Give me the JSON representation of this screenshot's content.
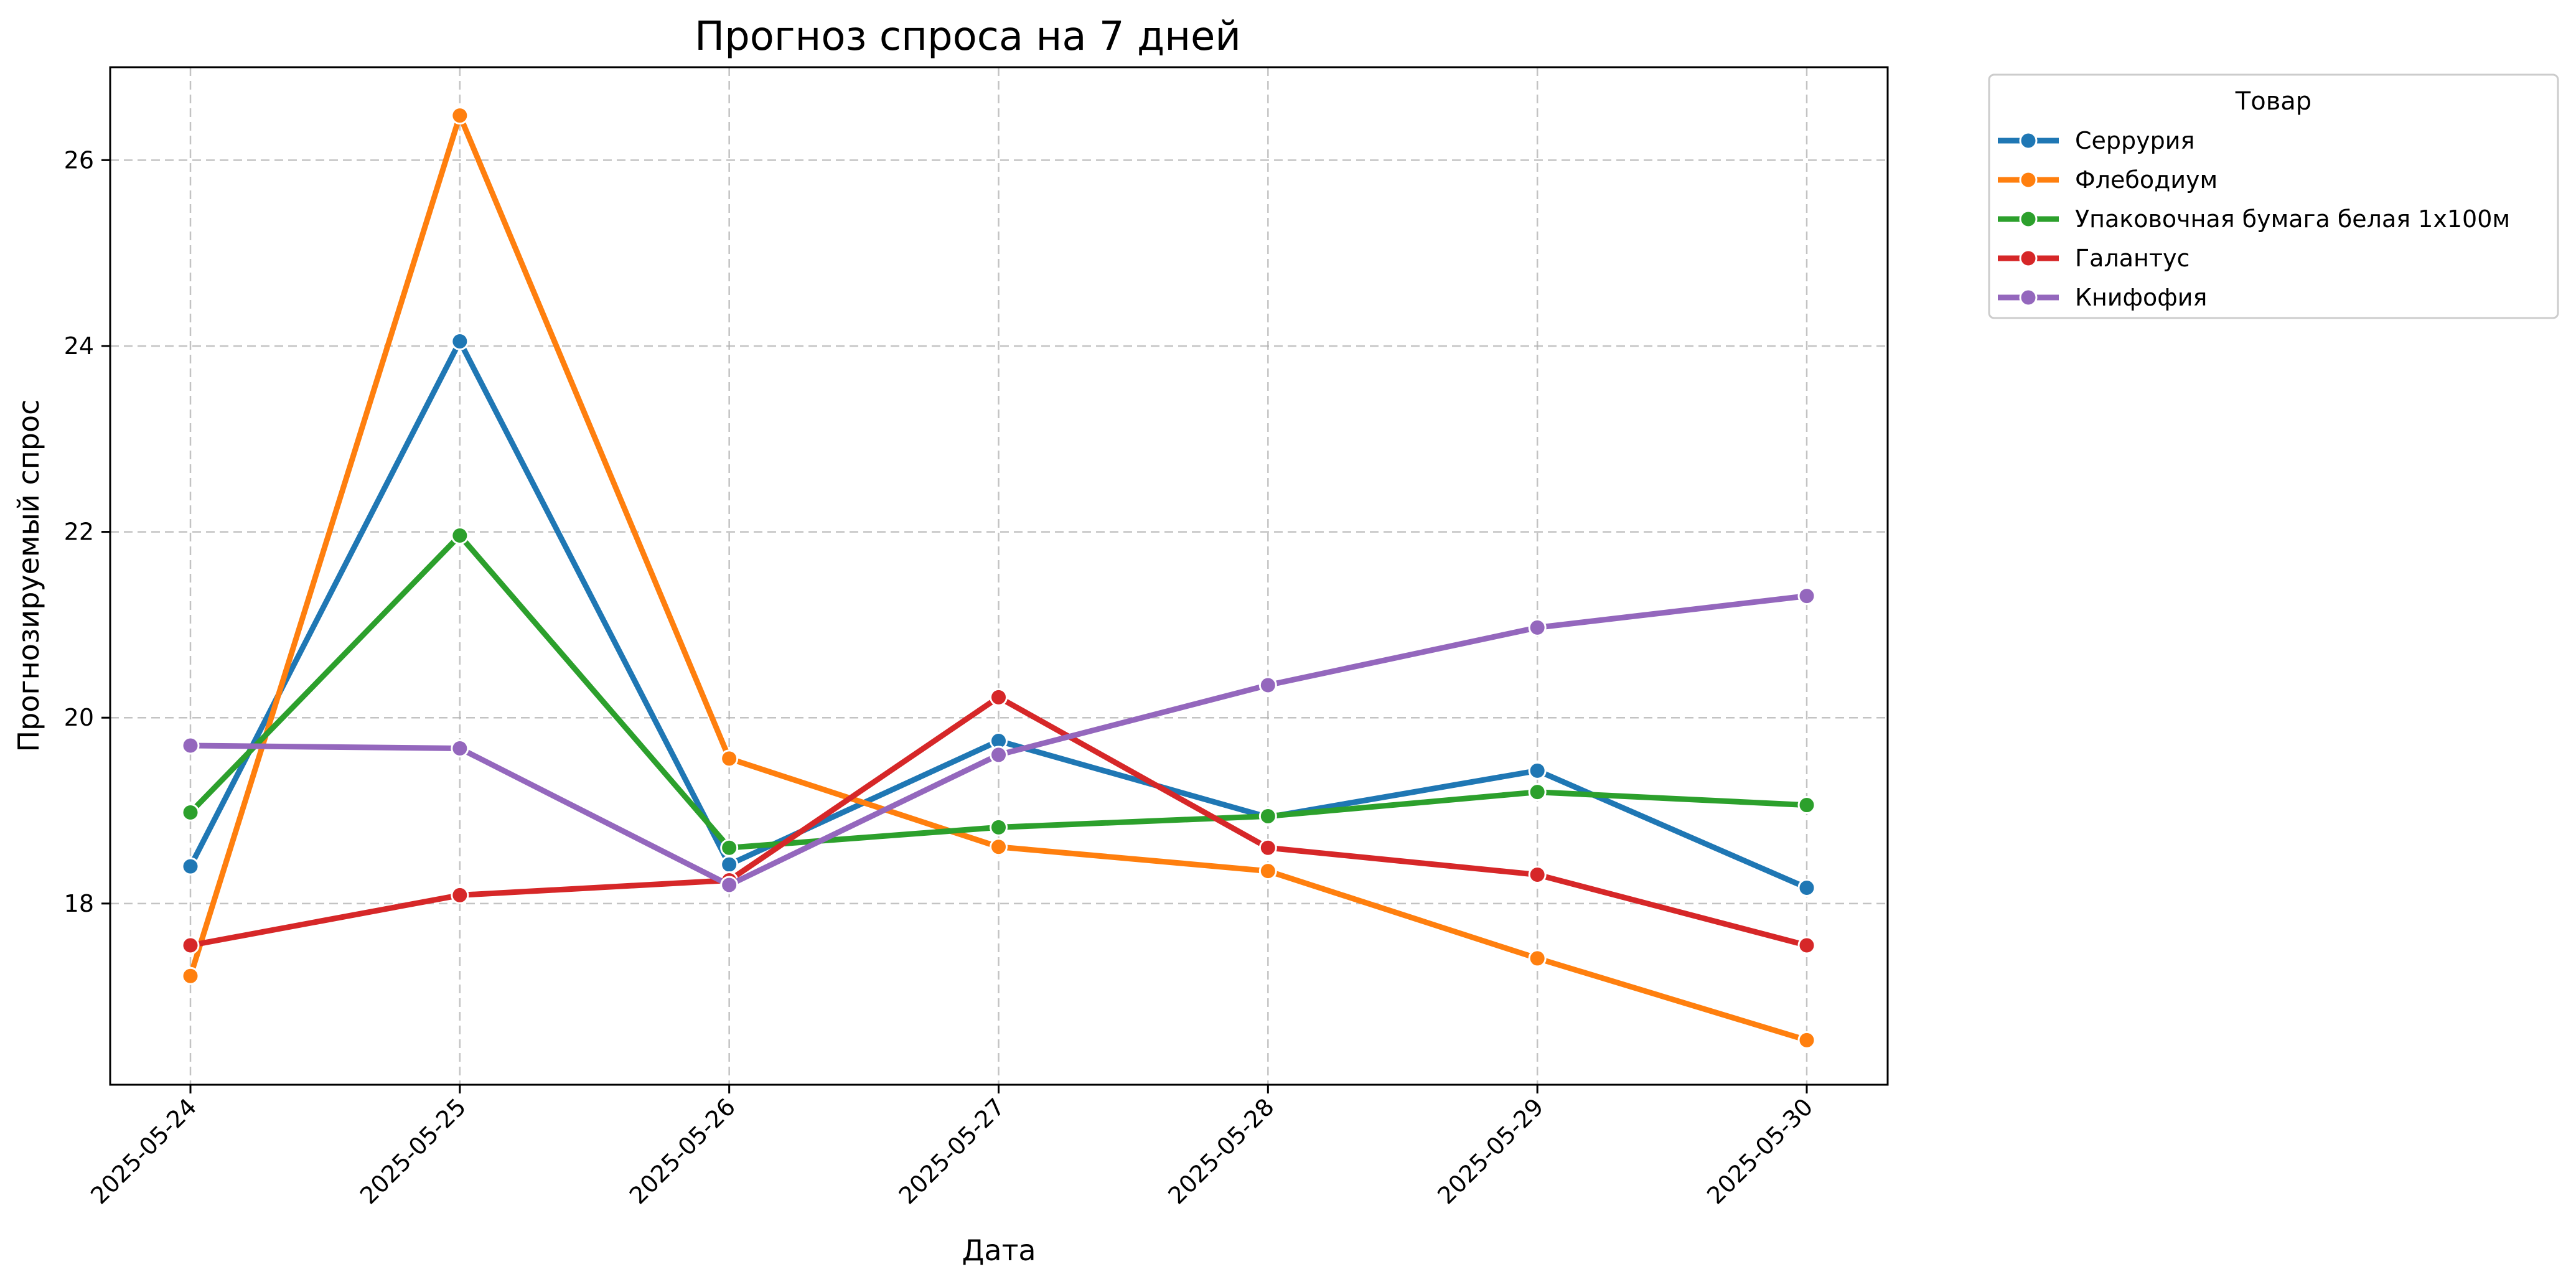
{
  "chart_data": {
    "type": "line",
    "title": "Прогноз спроса на 7 дней",
    "xlabel": "Дата",
    "ylabel": "Прогнозируемый спрос",
    "x": [
      "2025-05-24",
      "2025-05-25",
      "2025-05-26",
      "2025-05-27",
      "2025-05-28",
      "2025-05-29",
      "2025-05-30"
    ],
    "ylim": [
      16.05,
      27.0
    ],
    "yticks": [
      18,
      20,
      22,
      24,
      26
    ],
    "grid": true,
    "legend": {
      "title": "Товар",
      "placement": "outside-right-top"
    },
    "series": [
      {
        "name": "Серрурия",
        "color": "#1f77b4",
        "values": [
          18.4,
          24.05,
          18.42,
          19.75,
          18.93,
          19.43,
          18.17
        ]
      },
      {
        "name": "Флебодиум",
        "color": "#ff7f0e",
        "values": [
          17.22,
          26.48,
          19.56,
          18.61,
          18.35,
          17.41,
          16.53
        ]
      },
      {
        "name": "Упаковочная бумага белая 1x100м",
        "color": "#2ca02c",
        "values": [
          18.98,
          21.96,
          18.6,
          18.82,
          18.94,
          19.2,
          19.06
        ]
      },
      {
        "name": "Галантус",
        "color": "#d62728",
        "values": [
          17.55,
          18.09,
          18.25,
          20.22,
          18.6,
          18.31,
          17.55
        ]
      },
      {
        "name": "Книфофия",
        "color": "#9467bd",
        "values": [
          19.7,
          19.67,
          18.2,
          19.6,
          20.35,
          20.97,
          21.31
        ]
      }
    ]
  }
}
